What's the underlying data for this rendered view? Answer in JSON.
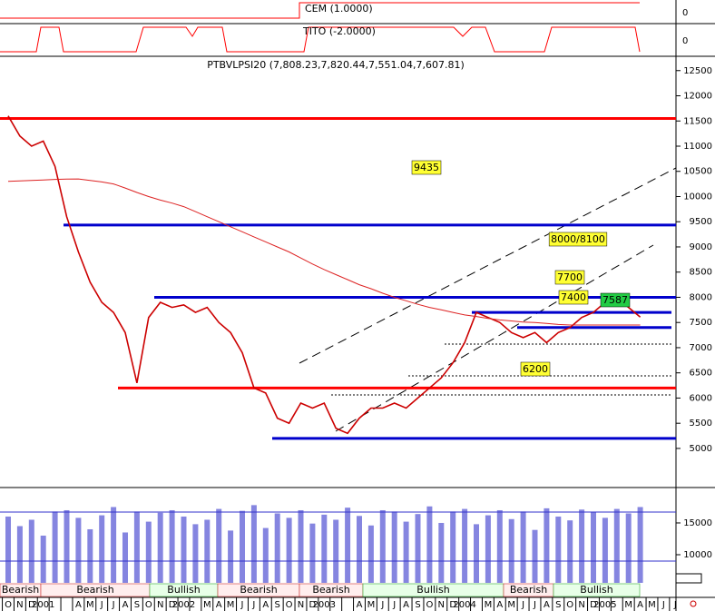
{
  "chart_data": {
    "type": "line",
    "title": "PTBVLPSI20 (7,808.23,7,820.44,7,551.04,7,607.81)",
    "cem_label": "CEM (1.0000)",
    "cem_tick": 0,
    "tito_label": "TITO (-2.0000)",
    "tito_tick": 0,
    "categories": [
      "O",
      "N",
      "D",
      "2001",
      null,
      null,
      "A",
      "M",
      "J",
      "J",
      "A",
      "S",
      "O",
      "N",
      "D",
      "2002",
      null,
      "M",
      "A",
      "M",
      "J",
      "J",
      "A",
      "S",
      "O",
      "N",
      "D",
      "2003",
      null,
      null,
      "A",
      "M",
      "J",
      "J",
      "A",
      "S",
      "O",
      "N",
      "D",
      "2004",
      null,
      "M",
      "A",
      "M",
      "J",
      "J",
      "A",
      "S",
      "O",
      "N",
      "D",
      "2005",
      null,
      "M",
      "A",
      "M",
      "J",
      "J"
    ],
    "series": [
      {
        "color": "#cc0000",
        "values": [
          11600,
          11200,
          11000,
          11100,
          10600,
          9600,
          8900,
          8300,
          7900,
          7700,
          7300,
          6300,
          7600,
          7900,
          7800,
          7850,
          7700,
          7800,
          7500,
          7300,
          6900,
          6200,
          6100,
          5600,
          5500,
          5900,
          5800,
          5900,
          5400,
          5300,
          5600,
          5800,
          5800,
          5900,
          5800,
          6000,
          6200,
          6400,
          6700,
          7100,
          7700,
          7600,
          7500,
          7300,
          7200,
          7300,
          7100,
          7300,
          7400,
          7600,
          7700,
          7900,
          8000,
          7800,
          7608,
          null,
          null,
          null
        ]
      },
      {
        "color": "#dd2222",
        "values": [
          10300,
          10310,
          10320,
          10330,
          10340,
          10345,
          10350,
          10320,
          10290,
          10250,
          10170,
          10080,
          10000,
          9930,
          9870,
          9800,
          9700,
          9600,
          9500,
          9400,
          9300,
          9200,
          9100,
          9000,
          8900,
          8780,
          8660,
          8550,
          8450,
          8350,
          8250,
          8170,
          8080,
          8000,
          7930,
          7860,
          7800,
          7750,
          7700,
          7650,
          7620,
          7580,
          7550,
          7530,
          7510,
          7500,
          7480,
          7460,
          7450,
          7450,
          7450,
          7450,
          7450,
          7450,
          7450,
          null,
          null,
          null
        ]
      }
    ],
    "ylim": [
      4350,
      12730
    ],
    "yticks": [
      5000,
      5500,
      6000,
      6500,
      7000,
      7500,
      8000,
      8500,
      9000,
      9500,
      10000,
      10500,
      11000,
      11500,
      12000,
      12500
    ],
    "levels": [
      {
        "value": 11550,
        "color": "#ff0000"
      },
      {
        "value": 9435,
        "color": "#0000cc"
      },
      {
        "value": 8000,
        "color": "#0000cc"
      },
      {
        "value": 7700,
        "color": "#0000cc"
      },
      {
        "value": 7400,
        "color": "#0000cc"
      },
      {
        "value": 6200,
        "color": "#ff0000"
      },
      {
        "value": 5200,
        "color": "#0000cc"
      }
    ],
    "annotations": [
      "9435",
      "8000/8100",
      "7700",
      "7400",
      "7587",
      "6200"
    ],
    "volume": {
      "color": "#3333cc",
      "values": [
        16000,
        14500,
        15500,
        13000,
        16800,
        17000,
        15800,
        14000,
        16200,
        17500,
        13500,
        16800,
        15200,
        16600,
        17000,
        16000,
        14800,
        15500,
        17200,
        13800,
        16900,
        17800,
        14200,
        16500,
        15800,
        17000,
        14900,
        16300,
        15500,
        17400,
        16100,
        14600,
        17000,
        16800,
        15200,
        16400,
        17600,
        15000,
        16800,
        17200,
        14800,
        16200,
        17000,
        15600,
        16800,
        13900,
        17300,
        16000,
        15400,
        17100,
        16700,
        15800,
        17200,
        16500,
        17500,
        null,
        null,
        null
      ],
      "ylim": [
        5570,
        20140
      ],
      "yticks": [
        10000,
        15000
      ]
    },
    "regimes": [
      "Bearish",
      "Bearish",
      "Bullish",
      "Bearish",
      "Bearish",
      "Bullish",
      "Bearish",
      "Bullish"
    ]
  }
}
